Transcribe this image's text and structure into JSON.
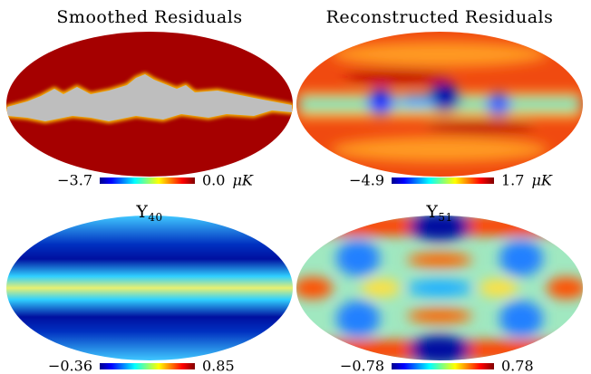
{
  "chart_data": [
    {
      "type": "map",
      "title": "Smoothed Residuals",
      "clim": [
        -3.7,
        0.0
      ],
      "cticks": [
        {
          "value": -3.7,
          "label": "−3.7"
        },
        {
          "value": 0.0,
          "label": "0.0"
        }
      ],
      "unit": "μK"
    },
    {
      "type": "map",
      "title": "Reconstructed Residuals",
      "clim": [
        -4.9,
        1.7
      ],
      "cticks": [
        {
          "value": -4.9,
          "label": "−4.9"
        },
        1.7
      ],
      "unit": "μK"
    },
    {
      "type": "map",
      "title": "Y",
      "title_subscript": "40",
      "clim": [
        -0.36,
        0.85
      ],
      "cticks": [
        {
          "value": -0.36,
          "label": "−0.36"
        },
        0.85
      ]
    },
    {
      "type": "map",
      "title": "Y",
      "title_subscript": "51",
      "clim": [
        -0.78,
        0.78
      ],
      "cticks": [
        {
          "value": -0.78,
          "label": "−0.78"
        },
        0.78
      ]
    }
  ]
}
